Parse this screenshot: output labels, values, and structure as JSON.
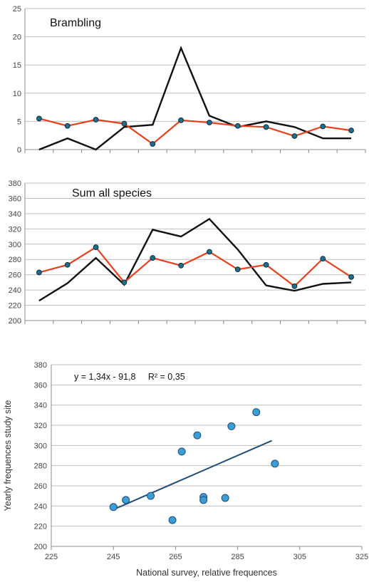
{
  "chart_data": [
    {
      "type": "line",
      "title": "Brambling",
      "ylim": [
        0,
        25
      ],
      "yticks": [
        "0",
        "5",
        "10",
        "15",
        "20",
        "25"
      ],
      "grid": true,
      "series": [
        {
          "color": "#e8401c",
          "marker": true,
          "values": [
            5.5,
            4.2,
            5.3,
            4.6,
            1.0,
            5.2,
            4.8,
            4.2,
            4.0,
            2.4,
            4.1,
            3.4
          ]
        },
        {
          "color": "#111111",
          "marker": false,
          "values": [
            0,
            2,
            0,
            4,
            4.4,
            18,
            6,
            4,
            5,
            4,
            2,
            2
          ]
        }
      ]
    },
    {
      "type": "line",
      "title": "Sum all species",
      "ylim": [
        200,
        380
      ],
      "yticks": [
        "200",
        "220",
        "240",
        "260",
        "280",
        "300",
        "320",
        "340",
        "360",
        "380"
      ],
      "grid": true,
      "series": [
        {
          "color": "#e8401c",
          "marker": true,
          "values": [
            263,
            273,
            296,
            250,
            282,
            272,
            290,
            267,
            273,
            245,
            281,
            257
          ]
        },
        {
          "color": "#111111",
          "marker": false,
          "values": [
            226,
            249,
            282,
            247,
            319,
            310,
            333,
            293,
            246,
            239,
            248,
            250
          ]
        }
      ]
    },
    {
      "type": "scatter",
      "xlabel": "National survey, relative frequences",
      "ylabel": "Yearly frequences study site",
      "xlim": [
        225,
        325
      ],
      "ylim": [
        200,
        380
      ],
      "xticks": [
        "225",
        "245",
        "265",
        "285",
        "305",
        "325"
      ],
      "yticks": [
        "200",
        "220",
        "240",
        "260",
        "280",
        "300",
        "320",
        "340",
        "360",
        "380"
      ],
      "annotation": "y = 1,34x - 91,8     R² = 0,35",
      "trendline": {
        "x": [
          245,
          296
        ],
        "y": [
          236.5,
          304.8
        ]
      },
      "points": [
        {
          "x": 245,
          "y": 239
        },
        {
          "x": 249,
          "y": 246
        },
        {
          "x": 257,
          "y": 250
        },
        {
          "x": 264,
          "y": 226
        },
        {
          "x": 267,
          "y": 294
        },
        {
          "x": 272,
          "y": 310
        },
        {
          "x": 274,
          "y": 249
        },
        {
          "x": 274,
          "y": 246
        },
        {
          "x": 281,
          "y": 248
        },
        {
          "x": 283,
          "y": 319
        },
        {
          "x": 291,
          "y": 333
        },
        {
          "x": 297,
          "y": 282
        }
      ],
      "point_color": "#3b9fd6",
      "trend_color": "#1f4e79"
    }
  ]
}
